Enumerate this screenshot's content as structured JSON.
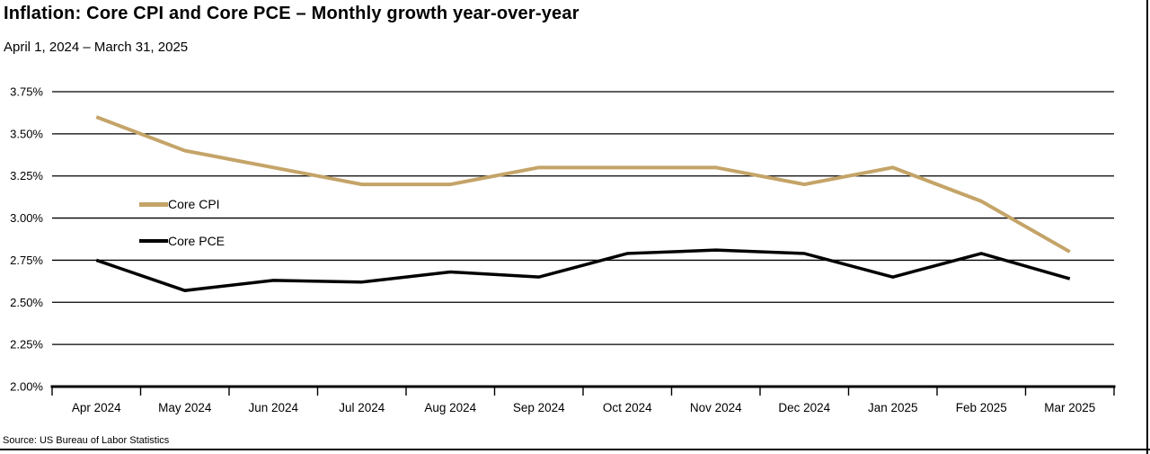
{
  "chart_data": {
    "type": "line",
    "title": "Inflation: Core CPI and Core PCE – Monthly growth year-over-year",
    "subtitle": "April 1, 2024 – March 31, 2025",
    "source": "Source: US Bureau of Labor Statistics",
    "categories": [
      "Apr 2024",
      "May 2024",
      "Jun 2024",
      "Jul 2024",
      "Aug 2024",
      "Sep 2024",
      "Oct 2024",
      "Nov 2024",
      "Dec 2024",
      "Jan 2025",
      "Feb 2025",
      "Mar 2025"
    ],
    "series": [
      {
        "name": "Core CPI",
        "color": "#C4A468",
        "values": [
          3.6,
          3.4,
          3.3,
          3.2,
          3.2,
          3.3,
          3.3,
          3.3,
          3.2,
          3.3,
          3.1,
          2.8
        ]
      },
      {
        "name": "Core PCE",
        "color": "#000000",
        "values": [
          2.75,
          2.57,
          2.63,
          2.62,
          2.68,
          2.65,
          2.79,
          2.81,
          2.79,
          2.65,
          2.79,
          2.64
        ]
      }
    ],
    "ylim": [
      2.0,
      3.75
    ],
    "ytick_values": [
      3.75,
      3.5,
      3.25,
      3.0,
      2.75,
      2.5,
      2.25,
      2.0
    ],
    "ytick_labels": [
      "3.75%",
      "3.50%",
      "3.25%",
      "3.00%",
      "2.75%",
      "2.50%",
      "2.25%",
      "2.00%"
    ],
    "xlabel": "",
    "ylabel": "",
    "grid": "horizontal",
    "legend_position": "inside-left"
  }
}
